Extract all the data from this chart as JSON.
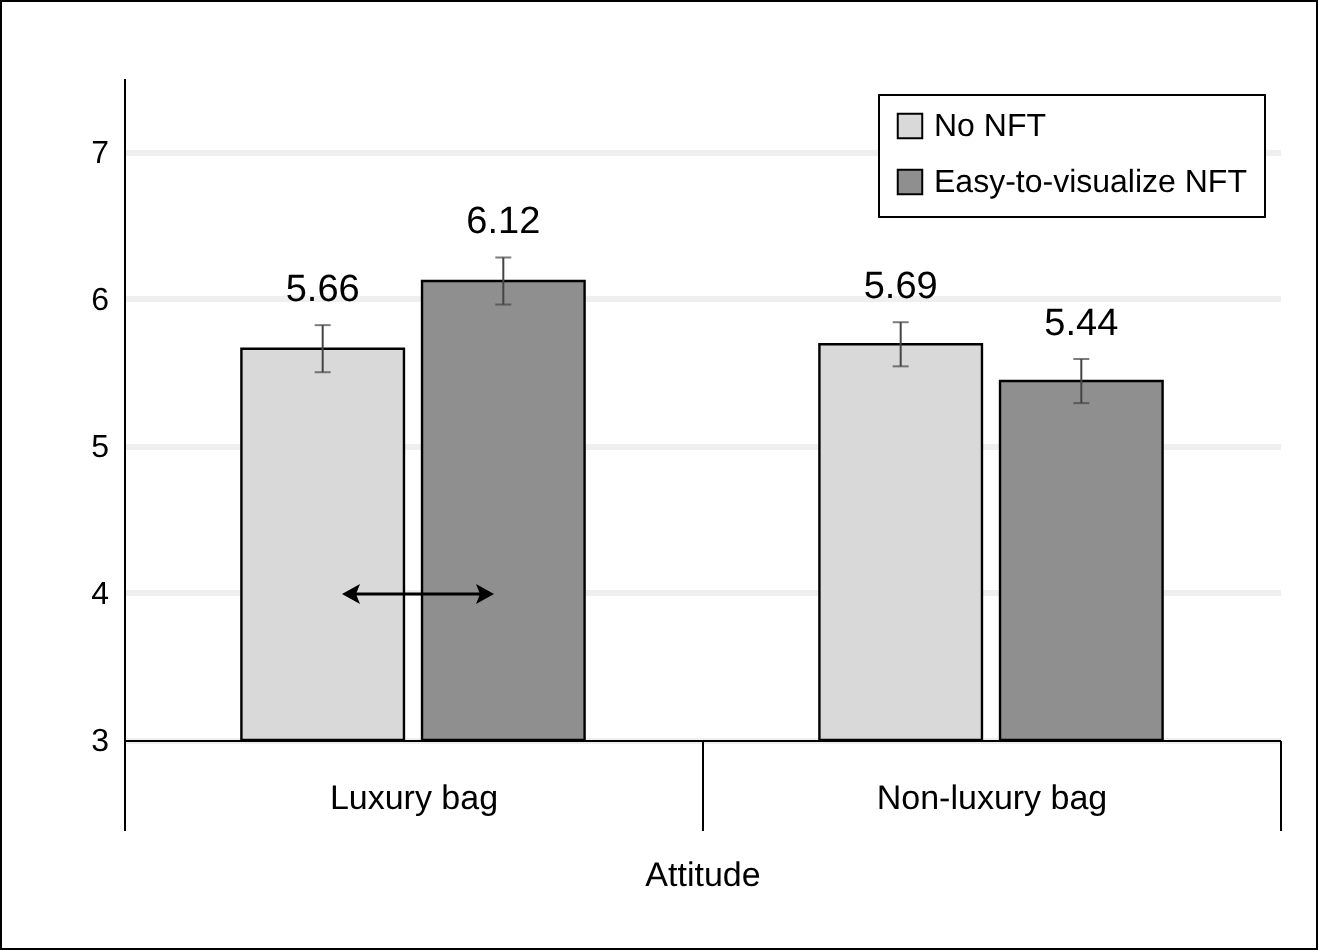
{
  "chart_data": {
    "type": "bar",
    "categories": [
      "Luxury bag",
      "Non-luxury bag"
    ],
    "xlabel": "Attitude",
    "series": [
      {
        "name": "No NFT",
        "color": "#d9d9d9",
        "values": [
          5.66,
          5.69
        ],
        "errors": [
          0.16,
          0.15
        ]
      },
      {
        "name": "Easy-to-visualize NFT",
        "color": "#8f8f8f",
        "values": [
          6.12,
          5.44
        ],
        "errors": [
          0.16,
          0.15
        ]
      }
    ],
    "ylim": [
      3,
      7.5
    ],
    "yticks": [
      3,
      4,
      5,
      6,
      7
    ],
    "grid": "y",
    "legend": "top right",
    "data_labels": true
  }
}
